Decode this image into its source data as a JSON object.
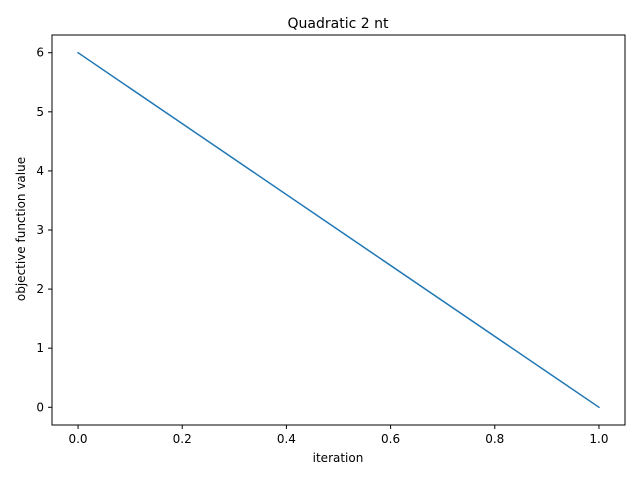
{
  "chart_data": {
    "type": "line",
    "title": "Quadratic 2 nt",
    "xlabel": "iteration",
    "ylabel": "objective function value",
    "xlim": [
      -0.05,
      1.05
    ],
    "ylim": [
      -0.3,
      6.3
    ],
    "xticks": [
      0.0,
      0.2,
      0.4,
      0.6,
      0.8,
      1.0
    ],
    "xtick_labels": [
      "0.0",
      "0.2",
      "0.4",
      "0.6",
      "0.8",
      "1.0"
    ],
    "yticks": [
      0,
      1,
      2,
      3,
      4,
      5,
      6
    ],
    "ytick_labels": [
      "0",
      "1",
      "2",
      "3",
      "4",
      "5",
      "6"
    ],
    "grid": false,
    "series": [
      {
        "color": "#1f77b4",
        "x": [
          0.0,
          1.0
        ],
        "y": [
          6.0,
          0.0
        ]
      }
    ]
  }
}
